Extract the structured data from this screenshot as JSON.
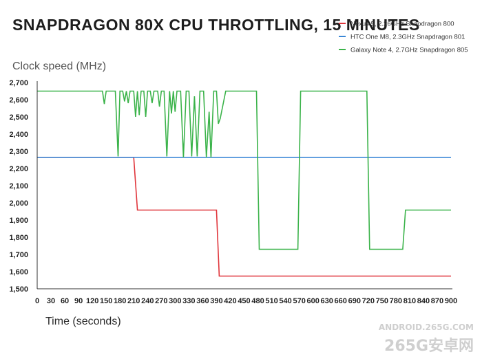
{
  "chart_data": {
    "type": "line",
    "title": "SNAPDRAGON 80X CPU THROTTLING, 15 MINUTES",
    "xlabel": "Time (seconds)",
    "ylabel": "Clock speed (MHz)",
    "xlim": [
      0,
      900
    ],
    "ylim": [
      1500,
      2700
    ],
    "x_ticks": [
      "0",
      "30",
      "60",
      "90",
      "120",
      "150",
      "180",
      "210",
      "240",
      "270",
      "300",
      "330",
      "360",
      "390",
      "420",
      "450",
      "480",
      "510",
      "540",
      "570",
      "600",
      "630",
      "660",
      "690",
      "720",
      "750",
      "780",
      "810",
      "840",
      "870",
      "900"
    ],
    "y_ticks": [
      "2,700",
      "2,600",
      "2,500",
      "2,400",
      "2,300",
      "2,200",
      "2,100",
      "2,000",
      "1,900",
      "1,800",
      "1,700",
      "1,600",
      "1,500"
    ],
    "grid": false,
    "legend_position": "top-right",
    "series": [
      {
        "name": "Nexus 5, 2.26GHz Snapdragon 800",
        "color": "#e0353b",
        "points": [
          [
            0,
            2265
          ],
          [
            210,
            2265
          ],
          [
            218,
            1958
          ],
          [
            390,
            1958
          ],
          [
            396,
            1574
          ],
          [
            900,
            1574
          ]
        ]
      },
      {
        "name": "HTC One M8, 2.3GHz Snapdragon 801",
        "color": "#3a87d6",
        "points": [
          [
            0,
            2265
          ],
          [
            900,
            2265
          ]
        ]
      },
      {
        "name": "Galaxy Note 4, 2.7GHz Snapdragon 805",
        "color": "#3bb34a",
        "points": [
          [
            0,
            2650
          ],
          [
            142,
            2650
          ],
          [
            146,
            2575
          ],
          [
            150,
            2650
          ],
          [
            170,
            2650
          ],
          [
            176,
            2270
          ],
          [
            180,
            2650
          ],
          [
            186,
            2650
          ],
          [
            190,
            2590
          ],
          [
            194,
            2650
          ],
          [
            198,
            2580
          ],
          [
            202,
            2650
          ],
          [
            210,
            2650
          ],
          [
            214,
            2500
          ],
          [
            218,
            2650
          ],
          [
            222,
            2510
          ],
          [
            226,
            2650
          ],
          [
            232,
            2650
          ],
          [
            236,
            2500
          ],
          [
            240,
            2650
          ],
          [
            246,
            2650
          ],
          [
            250,
            2580
          ],
          [
            254,
            2650
          ],
          [
            262,
            2650
          ],
          [
            266,
            2560
          ],
          [
            270,
            2650
          ],
          [
            276,
            2650
          ],
          [
            282,
            2270
          ],
          [
            288,
            2650
          ],
          [
            292,
            2520
          ],
          [
            296,
            2650
          ],
          [
            300,
            2530
          ],
          [
            304,
            2650
          ],
          [
            312,
            2650
          ],
          [
            318,
            2265
          ],
          [
            324,
            2650
          ],
          [
            330,
            2650
          ],
          [
            336,
            2270
          ],
          [
            342,
            2620
          ],
          [
            348,
            2270
          ],
          [
            354,
            2650
          ],
          [
            362,
            2650
          ],
          [
            368,
            2265
          ],
          [
            374,
            2530
          ],
          [
            378,
            2265
          ],
          [
            384,
            2650
          ],
          [
            390,
            2650
          ],
          [
            394,
            2460
          ],
          [
            398,
            2490
          ],
          [
            410,
            2650
          ],
          [
            477,
            2650
          ],
          [
            483,
            1730
          ],
          [
            567,
            1730
          ],
          [
            573,
            2650
          ],
          [
            717,
            2650
          ],
          [
            723,
            1730
          ],
          [
            795,
            1730
          ],
          [
            801,
            1958
          ],
          [
            900,
            1958
          ]
        ]
      }
    ]
  },
  "watermark": {
    "line1": "ANDROID.265G.COM",
    "line2": "265G安卓网"
  }
}
